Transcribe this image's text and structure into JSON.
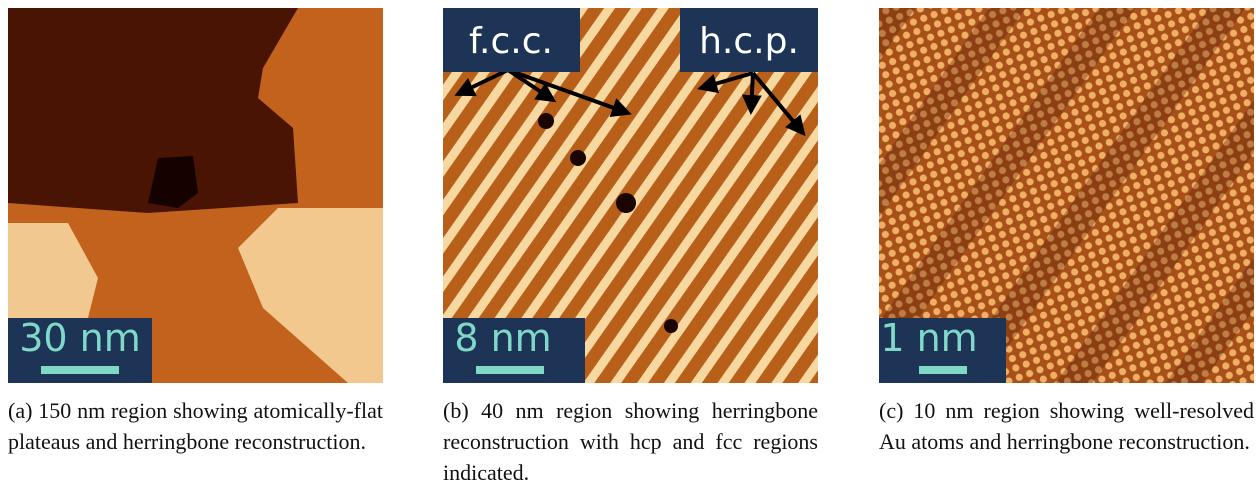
{
  "panels": [
    {
      "scale_bar": "30 nm",
      "caption": "(a) 150 nm region showing atomically-flat plateaus and herringbone reconstruction."
    },
    {
      "scale_bar": "8 nm",
      "caption": "(b) 40 nm region showing herringbone reconstruction with hcp and fcc regions indicated.",
      "annotations": [
        "f.c.c.",
        "h.c.p."
      ]
    },
    {
      "scale_bar": "1 nm",
      "caption": "(c) 10 nm region showing well-resolved Au atoms and herringbone reconstruction."
    }
  ]
}
